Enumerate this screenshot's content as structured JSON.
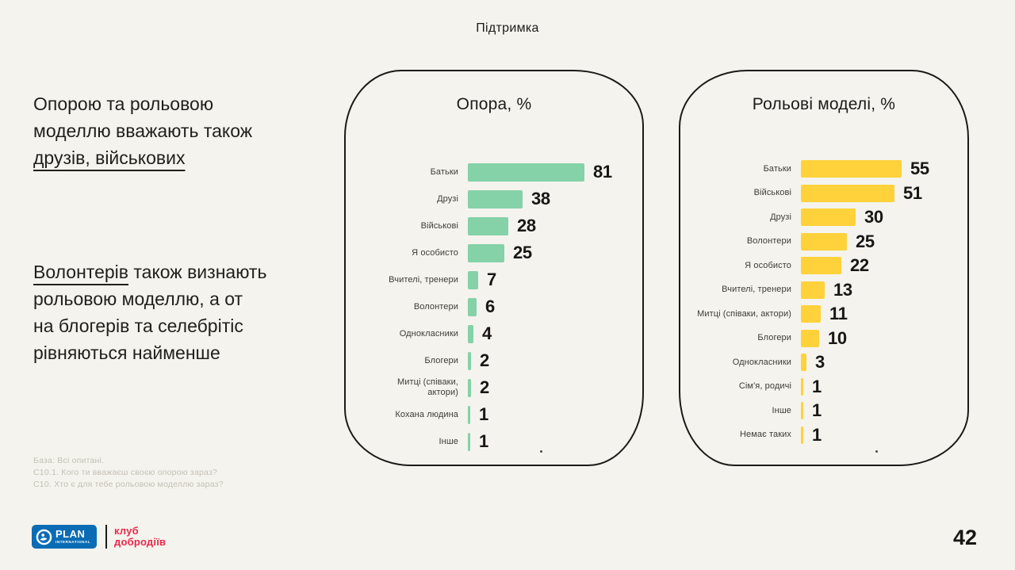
{
  "slide": {
    "header": "Підтримка",
    "page_number": "42"
  },
  "insights": [
    {
      "lines": [
        [
          {
            "text": "Опорою та рольовою"
          }
        ],
        [
          {
            "text": "моделлю вважають також"
          }
        ],
        [
          {
            "text": "друзів, військових ",
            "underline": true
          }
        ]
      ]
    },
    {
      "lines": [
        [
          {
            "text": "Волонтерів",
            "underline": true
          },
          {
            "text": " також визнають"
          }
        ],
        [
          {
            "text": "рольовою моделлю, а от"
          }
        ],
        [
          {
            "text": "на блогерів та селебрітіс"
          }
        ],
        [
          {
            "text": "рівняються найменше"
          }
        ]
      ]
    }
  ],
  "chart_data": [
    {
      "type": "bar",
      "orientation": "horizontal",
      "title": "Опора, %",
      "color": "#85D1A8",
      "value_range": [
        0,
        81
      ],
      "categories": [
        "Батьки",
        "Друзі",
        "Військові",
        "Я особисто",
        "Вчителі, тренери",
        "Волонтери",
        "Однокласники",
        "Блогери",
        "Митці (співаки,\nактори)",
        "Кохана людина",
        "Інше"
      ],
      "values": [
        81,
        38,
        28,
        25,
        7,
        6,
        4,
        2,
        2,
        1,
        1
      ]
    },
    {
      "type": "bar",
      "orientation": "horizontal",
      "title": "Рольові моделі, %",
      "color": "#FFD23B",
      "value_range": [
        0,
        55
      ],
      "categories": [
        "Батьки",
        "Військові",
        "Друзі",
        "Волонтери",
        "Я особисто",
        "Вчителі, тренери",
        "Митці (співаки, актори)",
        "Блогери",
        "Однокласники",
        "Сім'я, родичі",
        "Інше",
        "Немає таких"
      ],
      "values": [
        55,
        51,
        30,
        25,
        22,
        13,
        11,
        10,
        3,
        1,
        1,
        1
      ]
    }
  ],
  "footnotes": [
    "База: Всі опитані.",
    "С10.1. Кого ти вважаєш своєю опорою зараз?",
    "С10. Хто є для тебе рольовою моделлю зараз?"
  ],
  "logo": {
    "plan": "PLAN",
    "plan_sub": "INTERNATIONAL",
    "club": [
      "клуб",
      "добродіїв"
    ],
    "plan_color": "#0A6CB5",
    "club_color": "#E62B4E"
  },
  "colors": {
    "background": "#F5F3ED",
    "bar_green": "#85D1A8",
    "bar_yellow": "#FFD23B",
    "text_dark": "#1C1B19",
    "label_gray": "#3E3C38",
    "footnote_gray": "#C4C0B7",
    "outline_black": "#1B1A18"
  }
}
